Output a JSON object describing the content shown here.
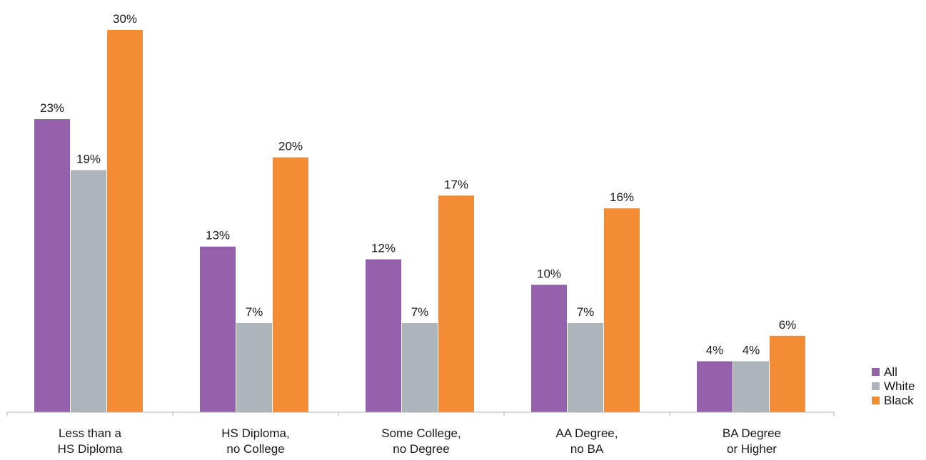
{
  "chart_data": {
    "type": "bar",
    "title": "",
    "xlabel": "",
    "ylabel": "",
    "ylim": [
      0,
      30
    ],
    "grid": false,
    "legend_position": "bottom-right",
    "value_suffix": "%",
    "categories": [
      [
        "Less than a",
        "HS Diploma"
      ],
      [
        "HS Diploma,",
        "no College"
      ],
      [
        "Some College,",
        "no Degree"
      ],
      [
        "AA Degree,",
        "no BA"
      ],
      [
        "BA Degree",
        "or Higher"
      ]
    ],
    "series": [
      {
        "name": "All",
        "color": "#9460AA",
        "values": [
          23,
          13,
          12,
          10,
          4
        ]
      },
      {
        "name": "White",
        "color": "#ADB5BB",
        "values": [
          19,
          7,
          7,
          7,
          4
        ]
      },
      {
        "name": "Black",
        "color": "#F48C33",
        "values": [
          30,
          20,
          17,
          16,
          6
        ]
      }
    ],
    "bar_label_values": [
      [
        23,
        13,
        12,
        10,
        4
      ],
      [
        19,
        7,
        7,
        7,
        4
      ],
      [
        30,
        20,
        17,
        16,
        6
      ]
    ]
  }
}
